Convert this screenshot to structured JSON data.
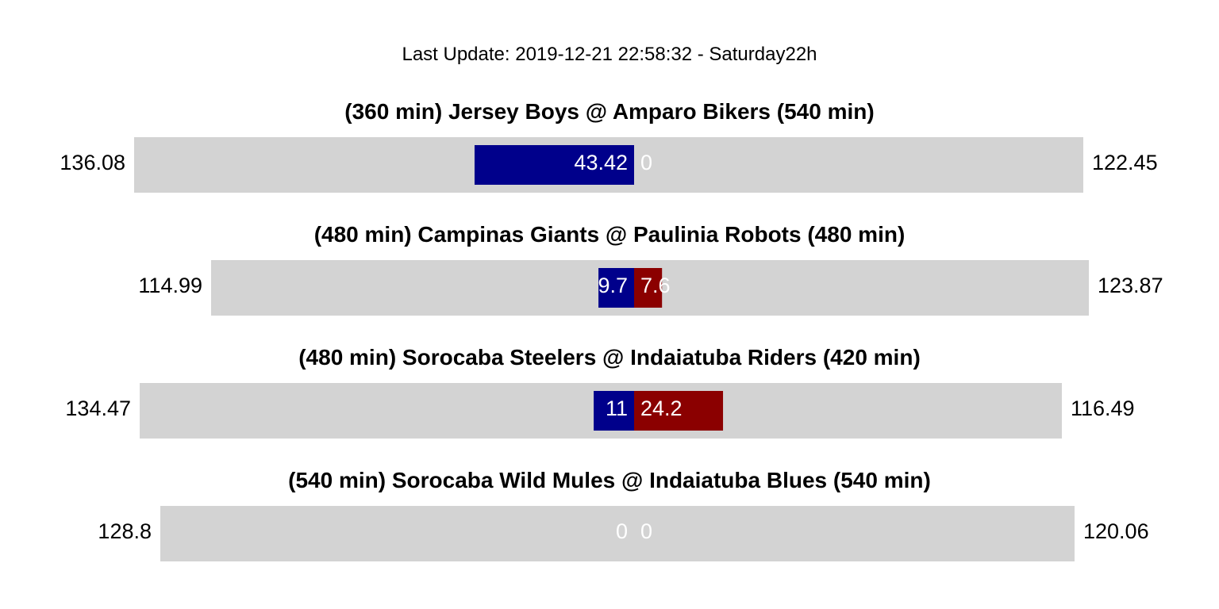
{
  "subtitle": "Last Update: 2019-12-21 22:58:32 - Saturday22h",
  "colors": {
    "background": "#d3d3d3",
    "away": "#00008b",
    "home": "#8b0000",
    "score_text": "#ffffff"
  },
  "chart_data": {
    "type": "bar",
    "matches": [
      {
        "title": "(360 min) Jersey Boys @ Amparo Bikers (540 min)",
        "away_projection": "136.08",
        "home_projection": "122.45",
        "away_score": 43.42,
        "home_score": 0,
        "away_label": "43.42",
        "home_label": "0"
      },
      {
        "title": "(480 min) Campinas Giants @ Paulinia Robots (480 min)",
        "away_projection": "114.99",
        "home_projection": "123.87",
        "away_score": 9.7,
        "home_score": 7.6,
        "away_label": "9.7",
        "home_label": "7.6"
      },
      {
        "title": "(480 min) Sorocaba Steelers @ Indaiatuba Riders (420 min)",
        "away_projection": "134.47",
        "home_projection": "116.49",
        "away_score": 11,
        "home_score": 24.2,
        "away_label": "11",
        "home_label": "24.2"
      },
      {
        "title": "(540 min) Sorocaba Wild Mules @ Indaiatuba Blues (540 min)",
        "away_projection": "128.8",
        "home_projection": "120.06",
        "away_score": 0,
        "home_score": 0,
        "away_label": "0",
        "home_label": "0"
      }
    ]
  }
}
